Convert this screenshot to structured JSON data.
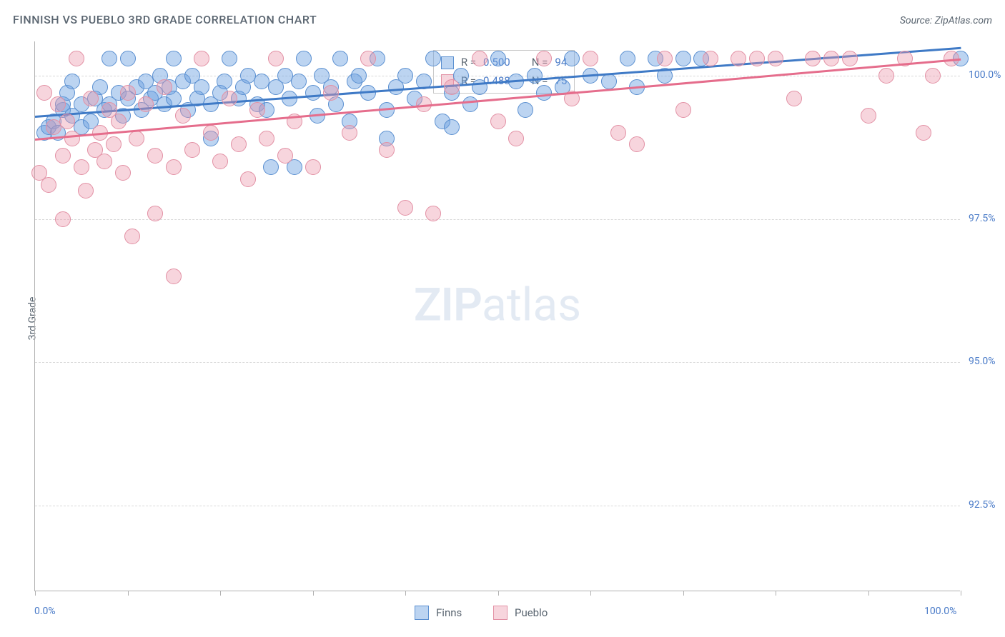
{
  "title": "FINNISH VS PUEBLO 3RD GRADE CORRELATION CHART",
  "source": "Source: ZipAtlas.com",
  "y_axis_label": "3rd Grade",
  "watermark_bold": "ZIP",
  "watermark_light": "atlas",
  "colors": {
    "series1_fill": "rgba(106,160,225,0.45)",
    "series1_stroke": "#5a8fd0",
    "series1_line": "#3f7ac6",
    "series2_fill": "rgba(236,150,170,0.40)",
    "series2_stroke": "#e290a4",
    "series2_line": "#e56d8c",
    "grid": "#d8d8d8",
    "axis": "#b0b0b0",
    "tick_text": "#4a7bc8",
    "title_text": "#5a6570"
  },
  "chart": {
    "type": "scatter",
    "xlim": [
      0,
      100
    ],
    "ylim": [
      91,
      100.6
    ],
    "x_ticks": [
      0,
      10,
      20,
      30,
      40,
      50,
      60,
      70,
      80,
      90,
      100
    ],
    "x_tick_labels": {
      "0": "0.0%",
      "100": "100.0%"
    },
    "y_gridlines": [
      92.5,
      95.0,
      97.5,
      100.0
    ],
    "y_tick_labels": {
      "92.5": "92.5%",
      "95.0": "95.0%",
      "97.5": "97.5%",
      "100.0": "100.0%"
    },
    "marker_radius": 11,
    "series": [
      {
        "name": "Finns",
        "r_label": "R =",
        "r_value": "0.500",
        "n_label": "N =",
        "n_value": "94",
        "trend": {
          "x0": 0,
          "y0": 99.3,
          "x1": 100,
          "y1": 100.5
        },
        "points": [
          [
            1,
            99.0
          ],
          [
            1.5,
            99.1
          ],
          [
            2,
            99.2
          ],
          [
            2.5,
            99.0
          ],
          [
            3,
            99.4
          ],
          [
            3,
            99.5
          ],
          [
            3.5,
            99.7
          ],
          [
            4,
            99.3
          ],
          [
            4,
            99.9
          ],
          [
            5,
            99.5
          ],
          [
            5,
            99.1
          ],
          [
            6,
            99.2
          ],
          [
            6.5,
            99.6
          ],
          [
            7,
            99.8
          ],
          [
            7.5,
            99.4
          ],
          [
            8,
            99.5
          ],
          [
            8,
            100.3
          ],
          [
            9,
            99.7
          ],
          [
            9.5,
            99.3
          ],
          [
            10,
            99.6
          ],
          [
            10,
            100.3
          ],
          [
            11,
            99.8
          ],
          [
            11.5,
            99.4
          ],
          [
            12,
            99.9
          ],
          [
            12.5,
            99.6
          ],
          [
            13,
            99.7
          ],
          [
            13.5,
            100.0
          ],
          [
            14,
            99.5
          ],
          [
            14.5,
            99.8
          ],
          [
            15,
            100.3
          ],
          [
            15,
            99.6
          ],
          [
            16,
            99.9
          ],
          [
            16.5,
            99.4
          ],
          [
            17,
            100.0
          ],
          [
            17.5,
            99.6
          ],
          [
            18,
            99.8
          ],
          [
            19,
            99.5
          ],
          [
            19,
            98.9
          ],
          [
            20,
            99.7
          ],
          [
            20.5,
            99.9
          ],
          [
            21,
            100.3
          ],
          [
            22,
            99.6
          ],
          [
            22.5,
            99.8
          ],
          [
            23,
            100.0
          ],
          [
            24,
            99.5
          ],
          [
            24.5,
            99.9
          ],
          [
            25,
            99.4
          ],
          [
            25.5,
            98.4
          ],
          [
            26,
            99.8
          ],
          [
            27,
            100.0
          ],
          [
            27.5,
            99.6
          ],
          [
            28,
            98.4
          ],
          [
            28.5,
            99.9
          ],
          [
            29,
            100.3
          ],
          [
            30,
            99.7
          ],
          [
            30.5,
            99.3
          ],
          [
            31,
            100.0
          ],
          [
            32,
            99.8
          ],
          [
            32.5,
            99.5
          ],
          [
            33,
            100.3
          ],
          [
            34,
            99.2
          ],
          [
            34.5,
            99.9
          ],
          [
            35,
            100.0
          ],
          [
            36,
            99.7
          ],
          [
            37,
            100.3
          ],
          [
            38,
            99.4
          ],
          [
            38,
            98.9
          ],
          [
            39,
            99.8
          ],
          [
            40,
            100.0
          ],
          [
            41,
            99.6
          ],
          [
            42,
            99.9
          ],
          [
            43,
            100.3
          ],
          [
            44,
            99.2
          ],
          [
            45,
            99.7
          ],
          [
            45,
            99.1
          ],
          [
            46,
            100.0
          ],
          [
            47,
            99.5
          ],
          [
            48,
            99.8
          ],
          [
            50,
            100.3
          ],
          [
            52,
            99.9
          ],
          [
            53,
            99.4
          ],
          [
            54,
            100.0
          ],
          [
            55,
            99.7
          ],
          [
            57,
            99.8
          ],
          [
            58,
            100.3
          ],
          [
            60,
            100.0
          ],
          [
            62,
            99.9
          ],
          [
            64,
            100.3
          ],
          [
            65,
            99.8
          ],
          [
            67,
            100.3
          ],
          [
            68,
            100.0
          ],
          [
            70,
            100.3
          ],
          [
            72,
            100.3
          ],
          [
            100,
            100.3
          ]
        ]
      },
      {
        "name": "Pueblo",
        "r_label": "R =",
        "r_value": "0.488",
        "n_label": "N =",
        "n_value": "75",
        "trend": {
          "x0": 0,
          "y0": 98.9,
          "x1": 100,
          "y1": 100.3
        },
        "points": [
          [
            0.5,
            98.3
          ],
          [
            1,
            99.7
          ],
          [
            1.5,
            98.1
          ],
          [
            2,
            99.1
          ],
          [
            2.5,
            99.5
          ],
          [
            3,
            98.6
          ],
          [
            3,
            97.5
          ],
          [
            3.5,
            99.2
          ],
          [
            4,
            98.9
          ],
          [
            4.5,
            100.3
          ],
          [
            5,
            98.4
          ],
          [
            5.5,
            98.0
          ],
          [
            6,
            99.6
          ],
          [
            6.5,
            98.7
          ],
          [
            7,
            99.0
          ],
          [
            7.5,
            98.5
          ],
          [
            8,
            99.4
          ],
          [
            8.5,
            98.8
          ],
          [
            9,
            99.2
          ],
          [
            9.5,
            98.3
          ],
          [
            10,
            99.7
          ],
          [
            10.5,
            97.2
          ],
          [
            11,
            98.9
          ],
          [
            12,
            99.5
          ],
          [
            13,
            98.6
          ],
          [
            13,
            97.6
          ],
          [
            14,
            99.8
          ],
          [
            15,
            98.4
          ],
          [
            15,
            96.5
          ],
          [
            16,
            99.3
          ],
          [
            17,
            98.7
          ],
          [
            18,
            100.3
          ],
          [
            19,
            99.0
          ],
          [
            20,
            98.5
          ],
          [
            21,
            99.6
          ],
          [
            22,
            98.8
          ],
          [
            23,
            98.2
          ],
          [
            24,
            99.4
          ],
          [
            25,
            98.9
          ],
          [
            26,
            100.3
          ],
          [
            27,
            98.6
          ],
          [
            28,
            99.2
          ],
          [
            30,
            98.4
          ],
          [
            32,
            99.7
          ],
          [
            34,
            99.0
          ],
          [
            36,
            100.3
          ],
          [
            38,
            98.7
          ],
          [
            40,
            97.7
          ],
          [
            42,
            99.5
          ],
          [
            43,
            97.6
          ],
          [
            45,
            99.8
          ],
          [
            48,
            100.3
          ],
          [
            50,
            99.2
          ],
          [
            52,
            98.9
          ],
          [
            55,
            100.3
          ],
          [
            58,
            99.6
          ],
          [
            60,
            100.3
          ],
          [
            63,
            99.0
          ],
          [
            65,
            98.8
          ],
          [
            68,
            100.3
          ],
          [
            70,
            99.4
          ],
          [
            73,
            100.3
          ],
          [
            76,
            100.3
          ],
          [
            78,
            100.3
          ],
          [
            80,
            100.3
          ],
          [
            82,
            99.6
          ],
          [
            84,
            100.3
          ],
          [
            86,
            100.3
          ],
          [
            88,
            100.3
          ],
          [
            90,
            99.3
          ],
          [
            92,
            100.0
          ],
          [
            94,
            100.3
          ],
          [
            96,
            99.0
          ],
          [
            97,
            100.0
          ],
          [
            99,
            100.3
          ]
        ]
      }
    ]
  },
  "legend": {
    "series1": "Finns",
    "series2": "Pueblo"
  }
}
